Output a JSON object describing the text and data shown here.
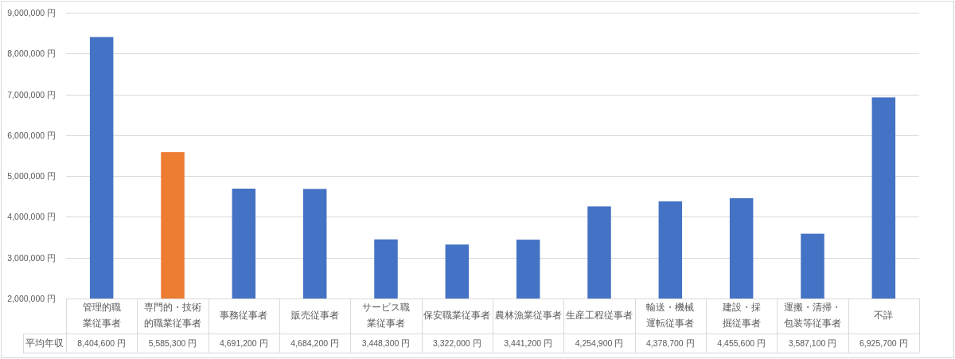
{
  "chart_data": {
    "type": "bar",
    "categories": [
      "管理的職業従事者",
      "専門的・技術的職業従事者",
      "事務従事者",
      "販売従事者",
      "サービス職業従事者",
      "保安職業従事者",
      "農林漁業従事者",
      "生産工程従事者",
      "輸送・機械運転従事者",
      "建設・採掘従事者",
      "運搬・清掃・包装等従事者",
      "不詳"
    ],
    "series": [
      {
        "name": "平均年収",
        "values": [
          8404600,
          5585300,
          4691200,
          4684200,
          3448300,
          3322000,
          3441200,
          4254900,
          4378700,
          4455600,
          3587100,
          6925700
        ],
        "colors": [
          "#4472c4",
          "#ed7d31",
          "#4472c4",
          "#4472c4",
          "#4472c4",
          "#4472c4",
          "#4472c4",
          "#4472c4",
          "#4472c4",
          "#4472c4",
          "#4472c4",
          "#4472c4"
        ],
        "value_labels": [
          "8,404,600 円",
          "5,585,300 円",
          "4,691,200 円",
          "4,684,200 円",
          "3,448,300 円",
          "3,322,000 円",
          "3,441,200 円",
          "4,254,900 円",
          "4,378,700 円",
          "4,455,600 円",
          "3,587,100 円",
          "6,925,700 円"
        ]
      }
    ],
    "ylim": [
      2000000,
      9000000
    ],
    "yticks": [
      {
        "value": 2000000,
        "label": "2,000,000 円"
      },
      {
        "value": 3000000,
        "label": "3,000,000 円"
      },
      {
        "value": 4000000,
        "label": "4,000,000 円"
      },
      {
        "value": 5000000,
        "label": "5,000,000 円"
      },
      {
        "value": 6000000,
        "label": "6,000,000 円"
      },
      {
        "value": 7000000,
        "label": "7,000,000 円"
      },
      {
        "value": 8000000,
        "label": "8,000,000 円"
      },
      {
        "value": 9000000,
        "label": "9,000,000 円"
      }
    ],
    "grid": "y"
  }
}
